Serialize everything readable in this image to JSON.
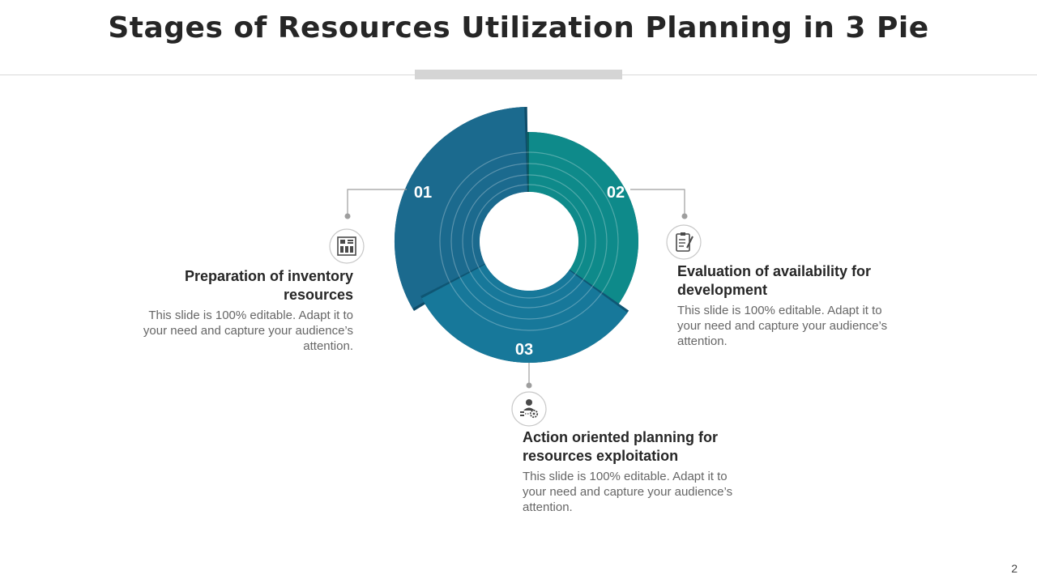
{
  "header": {
    "title": "Stages of Resources Utilization Planning in 3 Pie"
  },
  "colors": {
    "segment_01": "#1b6a8e",
    "segment_01_shadow": "#0f4d6a",
    "segment_02": "#0e8a8a",
    "segment_02_shadow": "#0a5f62",
    "segment_03": "#17789a",
    "segment_03_shadow": "#0f5674",
    "connector": "#9e9e9e"
  },
  "stages": [
    {
      "number": "01",
      "heading": "Preparation of inventory resources",
      "body": "This slide is 100% editable. Adapt it to your need and capture your audience’s attention.",
      "icon": "inventory-grid-icon"
    },
    {
      "number": "02",
      "heading": "Evaluation of availability for development",
      "body": "This slide is 100% editable. Adapt it to your need and capture your audience’s attention.",
      "icon": "checklist-clipboard-icon"
    },
    {
      "number": "03",
      "heading": "Action oriented planning for resources exploitation",
      "body": "This slide is 100% editable. Adapt it to your need and capture your audience’s attention.",
      "icon": "person-gear-icon"
    }
  ],
  "footer": {
    "page_number": "2"
  }
}
